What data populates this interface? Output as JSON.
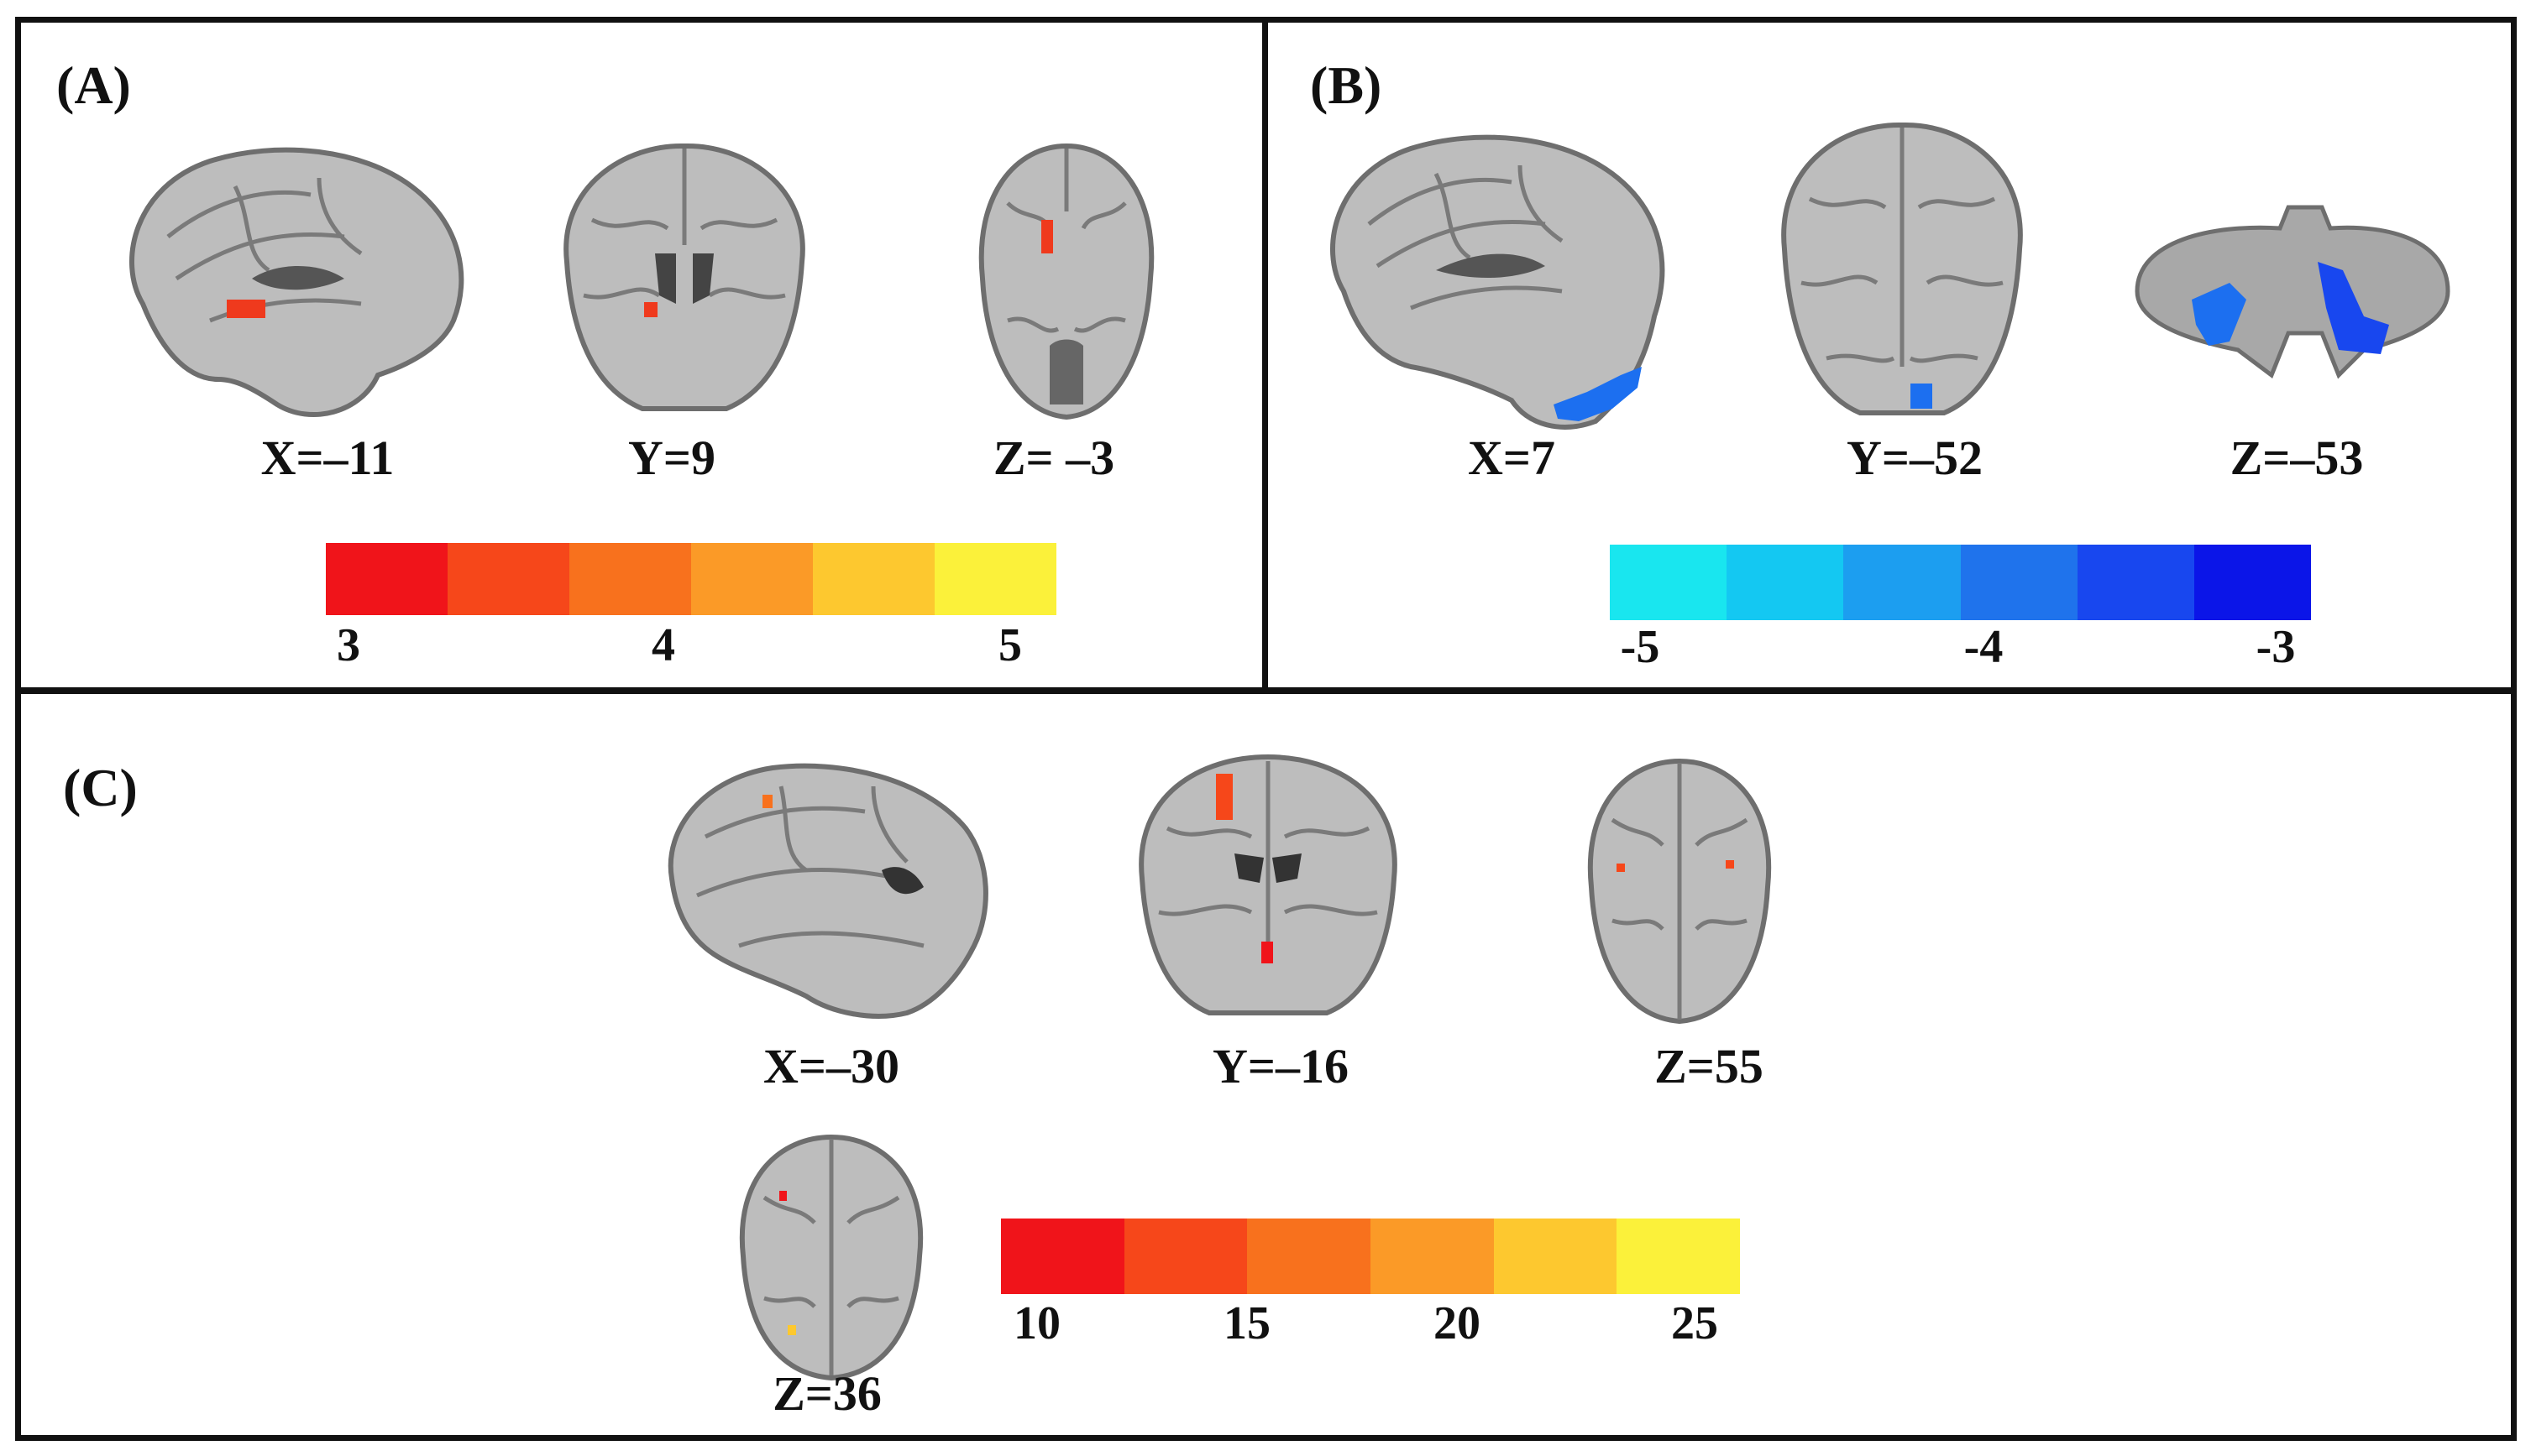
{
  "panels": [
    {
      "label": "(A)",
      "views": [
        {
          "label": "X=–11",
          "type": "sagittal"
        },
        {
          "label": "Y=9",
          "type": "coronal"
        },
        {
          "label": "Z= –3",
          "type": "axial"
        }
      ],
      "colorbar": {
        "colors": [
          "#f0141a",
          "#f6471a",
          "#f8711d",
          "#fb9a27",
          "#fdc82f",
          "#fbf13a"
        ],
        "ticks": [
          "3",
          "4",
          "5"
        ]
      }
    },
    {
      "label": "(B)",
      "views": [
        {
          "label": "X=7",
          "type": "sagittal"
        },
        {
          "label": "Y=–52",
          "type": "coronal"
        },
        {
          "label": "Z=–53",
          "type": "cerebellum"
        }
      ],
      "colorbar": {
        "colors": [
          "#19e6ef",
          "#14c8f2",
          "#1c9ef0",
          "#1f73ec",
          "#1847ef",
          "#0b15e8"
        ],
        "ticks": [
          "-5",
          "-4",
          "-3"
        ]
      }
    },
    {
      "label": "(C)",
      "views": [
        {
          "label": "X=–30",
          "type": "sagittal"
        },
        {
          "label": "Y=–16",
          "type": "coronal"
        },
        {
          "label": "Z=55",
          "type": "axial"
        },
        {
          "label": "Z=36",
          "type": "axial"
        }
      ],
      "colorbar": {
        "colors": [
          "#f0141a",
          "#f6471a",
          "#f8711d",
          "#fb9a27",
          "#fdc82f",
          "#fbf13a"
        ],
        "ticks": [
          "10",
          "15",
          "20",
          "25"
        ]
      }
    }
  ]
}
